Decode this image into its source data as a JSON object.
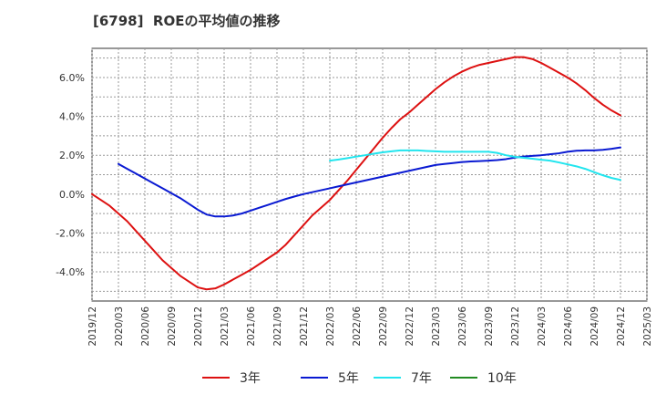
{
  "chart_data": {
    "type": "line",
    "title": "[6798]  ROEの平均値の推移",
    "xlabel": "",
    "ylabel": "",
    "x_ticks": [
      "2019/12",
      "2020/03",
      "2020/06",
      "2020/09",
      "2020/12",
      "2021/03",
      "2021/06",
      "2021/09",
      "2021/12",
      "2022/03",
      "2022/06",
      "2022/09",
      "2022/12",
      "2023/03",
      "2023/06",
      "2023/09",
      "2023/12",
      "2024/03",
      "2024/06",
      "2024/09",
      "2024/12",
      "2025/03"
    ],
    "y_ticks": [
      -4.0,
      -2.0,
      0.0,
      2.0,
      4.0,
      6.0
    ],
    "y_tick_labels": [
      "-4.0%",
      "-2.0%",
      "0.0%",
      "2.0%",
      "4.0%",
      "6.0%"
    ],
    "ylim": [
      -5.5,
      7.5
    ],
    "grid": true,
    "legend_position": "bottom",
    "series": [
      {
        "name": "3年",
        "color": "#dd1111",
        "x": [
          "2019/12",
          "2020/01",
          "2020/02",
          "2020/03",
          "2020/04",
          "2020/05",
          "2020/06",
          "2020/07",
          "2020/08",
          "2020/09",
          "2020/10",
          "2020/11",
          "2020/12",
          "2021/01",
          "2021/02",
          "2021/03",
          "2021/04",
          "2021/05",
          "2021/06",
          "2021/07",
          "2021/08",
          "2021/09",
          "2021/10",
          "2021/11",
          "2021/12",
          "2022/01",
          "2022/02",
          "2022/03",
          "2022/04",
          "2022/05",
          "2022/06",
          "2022/07",
          "2022/08",
          "2022/09",
          "2022/10",
          "2022/11",
          "2022/12",
          "2023/01",
          "2023/02",
          "2023/03",
          "2023/04",
          "2023/05",
          "2023/06",
          "2023/07",
          "2023/08",
          "2023/09",
          "2023/10",
          "2023/11",
          "2023/12",
          "2024/01",
          "2024/02",
          "2024/03",
          "2024/04",
          "2024/05",
          "2024/06",
          "2024/07",
          "2024/08",
          "2024/09",
          "2024/10",
          "2024/11",
          "2024/12"
        ],
        "values": [
          0.0,
          -0.3,
          -0.6,
          -1.0,
          -1.4,
          -1.9,
          -2.4,
          -2.9,
          -3.4,
          -3.8,
          -4.2,
          -4.5,
          -4.8,
          -4.9,
          -4.85,
          -4.65,
          -4.4,
          -4.15,
          -3.9,
          -3.6,
          -3.3,
          -3.0,
          -2.6,
          -2.1,
          -1.6,
          -1.1,
          -0.7,
          -0.3,
          0.2,
          0.7,
          1.25,
          1.8,
          2.35,
          2.9,
          3.4,
          3.85,
          4.2,
          4.6,
          5.0,
          5.4,
          5.75,
          6.05,
          6.3,
          6.5,
          6.65,
          6.75,
          6.85,
          6.95,
          7.05,
          7.05,
          6.95,
          6.75,
          6.5,
          6.25,
          6.0,
          5.7,
          5.35,
          4.95,
          4.6,
          4.3,
          4.05
        ]
      },
      {
        "name": "5年",
        "color": "#0a1ad2",
        "x": [
          "2020/03",
          "2020/04",
          "2020/05",
          "2020/06",
          "2020/07",
          "2020/08",
          "2020/09",
          "2020/10",
          "2020/11",
          "2020/12",
          "2021/01",
          "2021/02",
          "2021/03",
          "2021/04",
          "2021/05",
          "2021/06",
          "2021/07",
          "2021/08",
          "2021/09",
          "2021/10",
          "2021/11",
          "2021/12",
          "2022/01",
          "2022/02",
          "2022/03",
          "2022/04",
          "2022/05",
          "2022/06",
          "2022/07",
          "2022/08",
          "2022/09",
          "2022/10",
          "2022/11",
          "2022/12",
          "2023/01",
          "2023/02",
          "2023/03",
          "2023/04",
          "2023/05",
          "2023/06",
          "2023/07",
          "2023/08",
          "2023/09",
          "2023/10",
          "2023/11",
          "2023/12",
          "2024/01",
          "2024/02",
          "2024/03",
          "2024/04",
          "2024/05",
          "2024/06",
          "2024/07",
          "2024/08",
          "2024/09",
          "2024/10",
          "2024/11",
          "2024/12"
        ],
        "values": [
          1.55,
          1.3,
          1.05,
          0.8,
          0.55,
          0.3,
          0.05,
          -0.2,
          -0.5,
          -0.8,
          -1.05,
          -1.15,
          -1.15,
          -1.1,
          -1.0,
          -0.85,
          -0.7,
          -0.55,
          -0.4,
          -0.25,
          -0.12,
          0.0,
          0.1,
          0.2,
          0.3,
          0.4,
          0.5,
          0.6,
          0.7,
          0.8,
          0.9,
          1.0,
          1.1,
          1.2,
          1.3,
          1.4,
          1.5,
          1.55,
          1.6,
          1.65,
          1.68,
          1.7,
          1.72,
          1.75,
          1.8,
          1.88,
          1.93,
          1.97,
          2.0,
          2.05,
          2.1,
          2.18,
          2.23,
          2.25,
          2.25,
          2.28,
          2.33,
          2.4
        ]
      },
      {
        "name": "7年",
        "color": "#22e5ee",
        "x": [
          "2022/03",
          "2022/04",
          "2022/05",
          "2022/06",
          "2022/07",
          "2022/08",
          "2022/09",
          "2022/10",
          "2022/11",
          "2022/12",
          "2023/01",
          "2023/02",
          "2023/03",
          "2023/04",
          "2023/05",
          "2023/06",
          "2023/07",
          "2023/08",
          "2023/09",
          "2023/10",
          "2023/11",
          "2023/12",
          "2024/01",
          "2024/02",
          "2024/03",
          "2024/04",
          "2024/05",
          "2024/06",
          "2024/07",
          "2024/08",
          "2024/09",
          "2024/10",
          "2024/11",
          "2024/12"
        ],
        "values": [
          1.72,
          1.78,
          1.85,
          1.93,
          2.0,
          2.08,
          2.15,
          2.2,
          2.25,
          2.25,
          2.25,
          2.22,
          2.2,
          2.18,
          2.18,
          2.18,
          2.18,
          2.18,
          2.18,
          2.12,
          2.0,
          1.92,
          1.87,
          1.82,
          1.77,
          1.72,
          1.63,
          1.53,
          1.43,
          1.3,
          1.13,
          0.97,
          0.83,
          0.73
        ]
      },
      {
        "name": "10年",
        "color": "#228b22",
        "x": [],
        "values": []
      }
    ]
  }
}
